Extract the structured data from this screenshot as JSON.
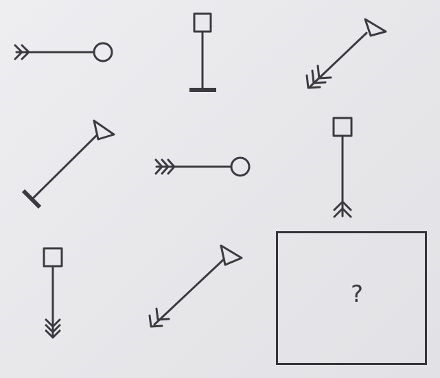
{
  "puzzle": {
    "answer_placeholder": "?"
  },
  "figures": [
    {
      "id": "r1c1",
      "head": "circle",
      "tail": "double-chevron",
      "direction": "west"
    },
    {
      "id": "r1c2",
      "head": "square",
      "tail": "bar",
      "direction": "south"
    },
    {
      "id": "r1c3",
      "head": "triangle",
      "tail": "triple-chevron",
      "direction": "south-west"
    },
    {
      "id": "r2c1",
      "head": "triangle",
      "tail": "bar",
      "direction": "south-west"
    },
    {
      "id": "r2c2",
      "head": "circle",
      "tail": "triple-chevron",
      "direction": "west"
    },
    {
      "id": "r2c3",
      "head": "square",
      "tail": "double-chevron",
      "direction": "south"
    },
    {
      "id": "r3c1",
      "head": "square",
      "tail": "triple-chevron",
      "direction": "south"
    },
    {
      "id": "r3c2",
      "head": "triangle",
      "tail": "double-chevron",
      "direction": "south-west"
    }
  ]
}
